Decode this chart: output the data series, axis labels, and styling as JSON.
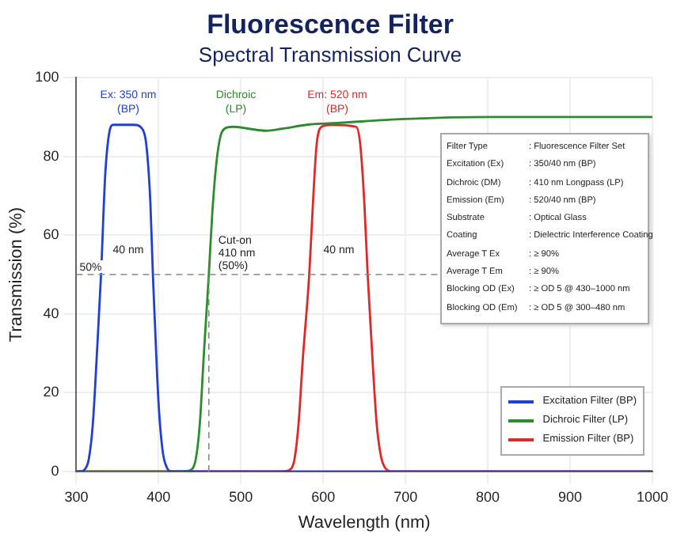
{
  "chart_data": {
    "type": "line",
    "title": "Fluorescence Filter",
    "subtitle": "Spectral Transmission Curve",
    "xlabel": "Wavelength (nm)",
    "ylabel": "Transmission (%)",
    "xlim": [
      300,
      1000
    ],
    "xticks": [
      300,
      400,
      500,
      600,
      700,
      800,
      900,
      1000
    ],
    "ylim": [
      0,
      100
    ],
    "yticks": [
      0,
      20,
      40,
      60,
      80,
      100
    ],
    "grid": true,
    "legend": "bottom right",
    "marker": "none",
    "line_style": "solid",
    "series": [
      {
        "name": "Excitation Filter (BP)",
        "color": "#1f3fd6",
        "x": [
          300,
          305,
          310,
          315,
          320,
          325,
          330,
          335,
          340,
          345,
          350,
          360,
          370,
          380,
          385,
          390,
          393,
          395,
          400,
          405,
          410,
          415,
          420,
          1000
        ],
        "values": [
          0,
          0,
          0.5,
          3,
          12,
          30,
          50,
          75,
          86,
          88,
          88,
          88,
          88,
          87,
          83,
          68,
          50,
          40,
          17,
          5,
          1,
          0,
          0,
          0
        ]
      },
      {
        "name": "Dichroic Filter (LP)",
        "color": "#2e8b2e",
        "x": [
          300,
          430,
          440,
          445,
          450,
          455,
          461,
          465,
          470,
          475,
          480,
          490,
          510,
          530,
          550,
          580,
          620,
          700,
          800,
          1000
        ],
        "values": [
          0,
          0,
          0.5,
          3,
          12,
          30,
          50,
          65,
          78,
          85,
          87,
          87.5,
          87,
          86.5,
          87,
          88,
          88.5,
          89.5,
          90,
          90
        ]
      },
      {
        "name": "Emission Filter (BP)",
        "color": "#e02828",
        "x": [
          300,
          550,
          560,
          565,
          570,
          575,
          583,
          588,
          592,
          598,
          610,
          640,
          645,
          650,
          654,
          660,
          665,
          670,
          675,
          685,
          1000
        ],
        "values": [
          0,
          0,
          0.5,
          3,
          12,
          28,
          50,
          70,
          83,
          87.5,
          88,
          87.5,
          83,
          68,
          50,
          28,
          12,
          4,
          1,
          0,
          0
        ]
      }
    ],
    "ref_lines": [
      {
        "axis": "y",
        "value": 50,
        "label": "50%",
        "line_style": "dashed",
        "color": "#888888"
      },
      {
        "axis": "x",
        "value": 461,
        "label": "Cut-on\n410 nm\n(50%)",
        "line_style": "dashed",
        "color": "#888888"
      }
    ],
    "annotations": [
      "Ex: 350 nm\n(BP)",
      "Dichroic\n(LP)",
      "Em: 520 nm\n(BP)",
      "40 nm",
      "40 nm",
      "Filter Type\t: Fluorescence Filter Set",
      "Excitation (Ex)\t: 350/40 nm (BP)",
      "Dichroic (DM)\t: 410 nm Longpass (LP)",
      "Emission (Em)\t: 520/40 nm (BP)",
      "Substrate\t: Optical Glass",
      "Coating\t: Dielectric Interference Coating",
      "Average T Ex\t: ≥ 90%",
      "Average T Em\t: ≥ 90%",
      "Blocking OD (Ex)\t: ≥ OD 5 @ 430–1000 nm",
      "Blocking OD (Em)\t: ≥ OD 5 @ 300–480 nm"
    ]
  }
}
